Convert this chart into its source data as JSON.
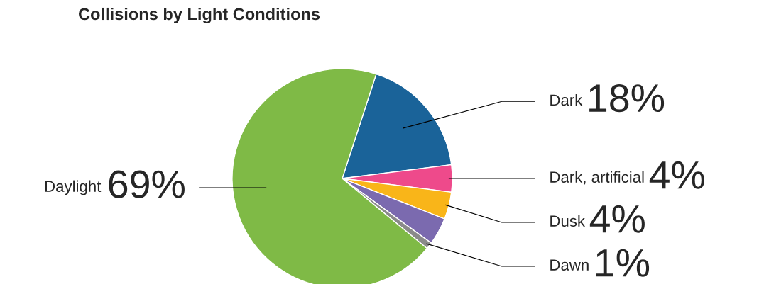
{
  "chart_data": {
    "type": "pie",
    "title": "Collisions by Light Conditions",
    "categories": [
      "Dark",
      "Dark, artificial",
      "Dusk",
      null,
      "Dawn",
      "Daylight"
    ],
    "values": [
      18,
      4,
      4,
      4,
      1,
      69
    ],
    "colors": [
      "#1a6399",
      "#ee4a8b",
      "#f9b519",
      "#7b6aaf",
      "#8a8a8a",
      "#7fba46"
    ],
    "value_labels": [
      "18%",
      "4%",
      "4%",
      null,
      "1%",
      "69%"
    ],
    "legend": false
  }
}
